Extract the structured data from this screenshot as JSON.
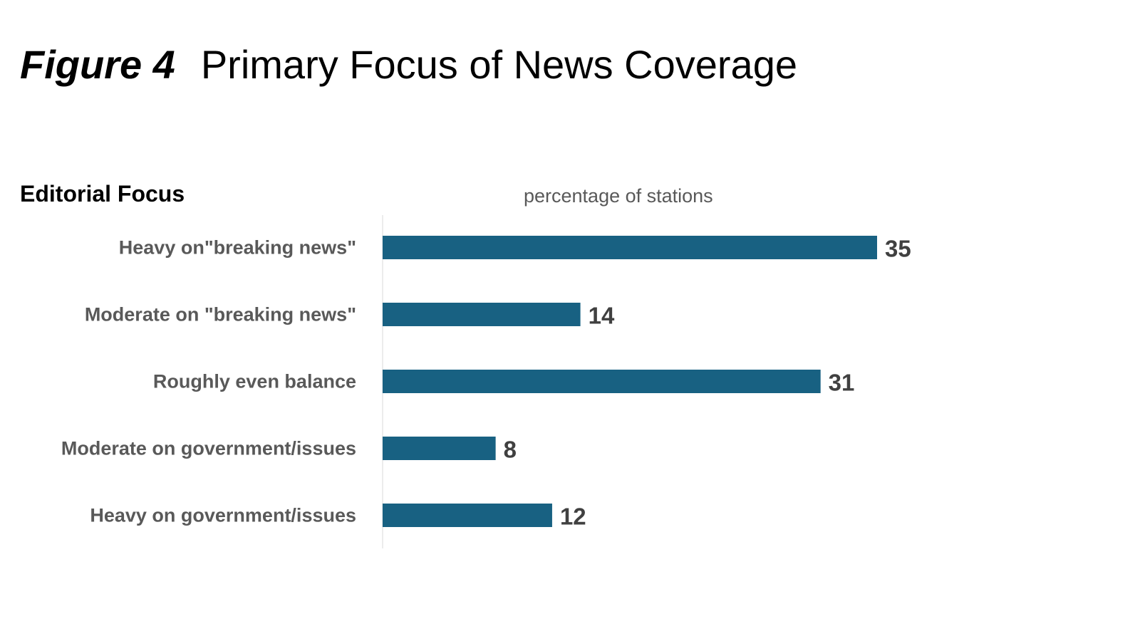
{
  "chart_data": {
    "type": "bar",
    "orientation": "horizontal",
    "figure_label": "Figure 4",
    "title": "Primary Focus of News Coverage",
    "subtitle": "Editorial Focus",
    "xlabel": "percentage of stations",
    "categories": [
      "Heavy on\"breaking news\"",
      "Moderate on \"breaking news\"",
      "Roughly even balance",
      "Moderate on government/issues",
      "Heavy on government/issues"
    ],
    "values": [
      35,
      14,
      31,
      8,
      12
    ],
    "xlim": [
      0,
      35
    ],
    "grid": false,
    "data_labels": true,
    "colors": {
      "bar": "#186182",
      "category_label": "#595959",
      "value_label": "#404040",
      "axis": "#d9d9d9"
    }
  }
}
